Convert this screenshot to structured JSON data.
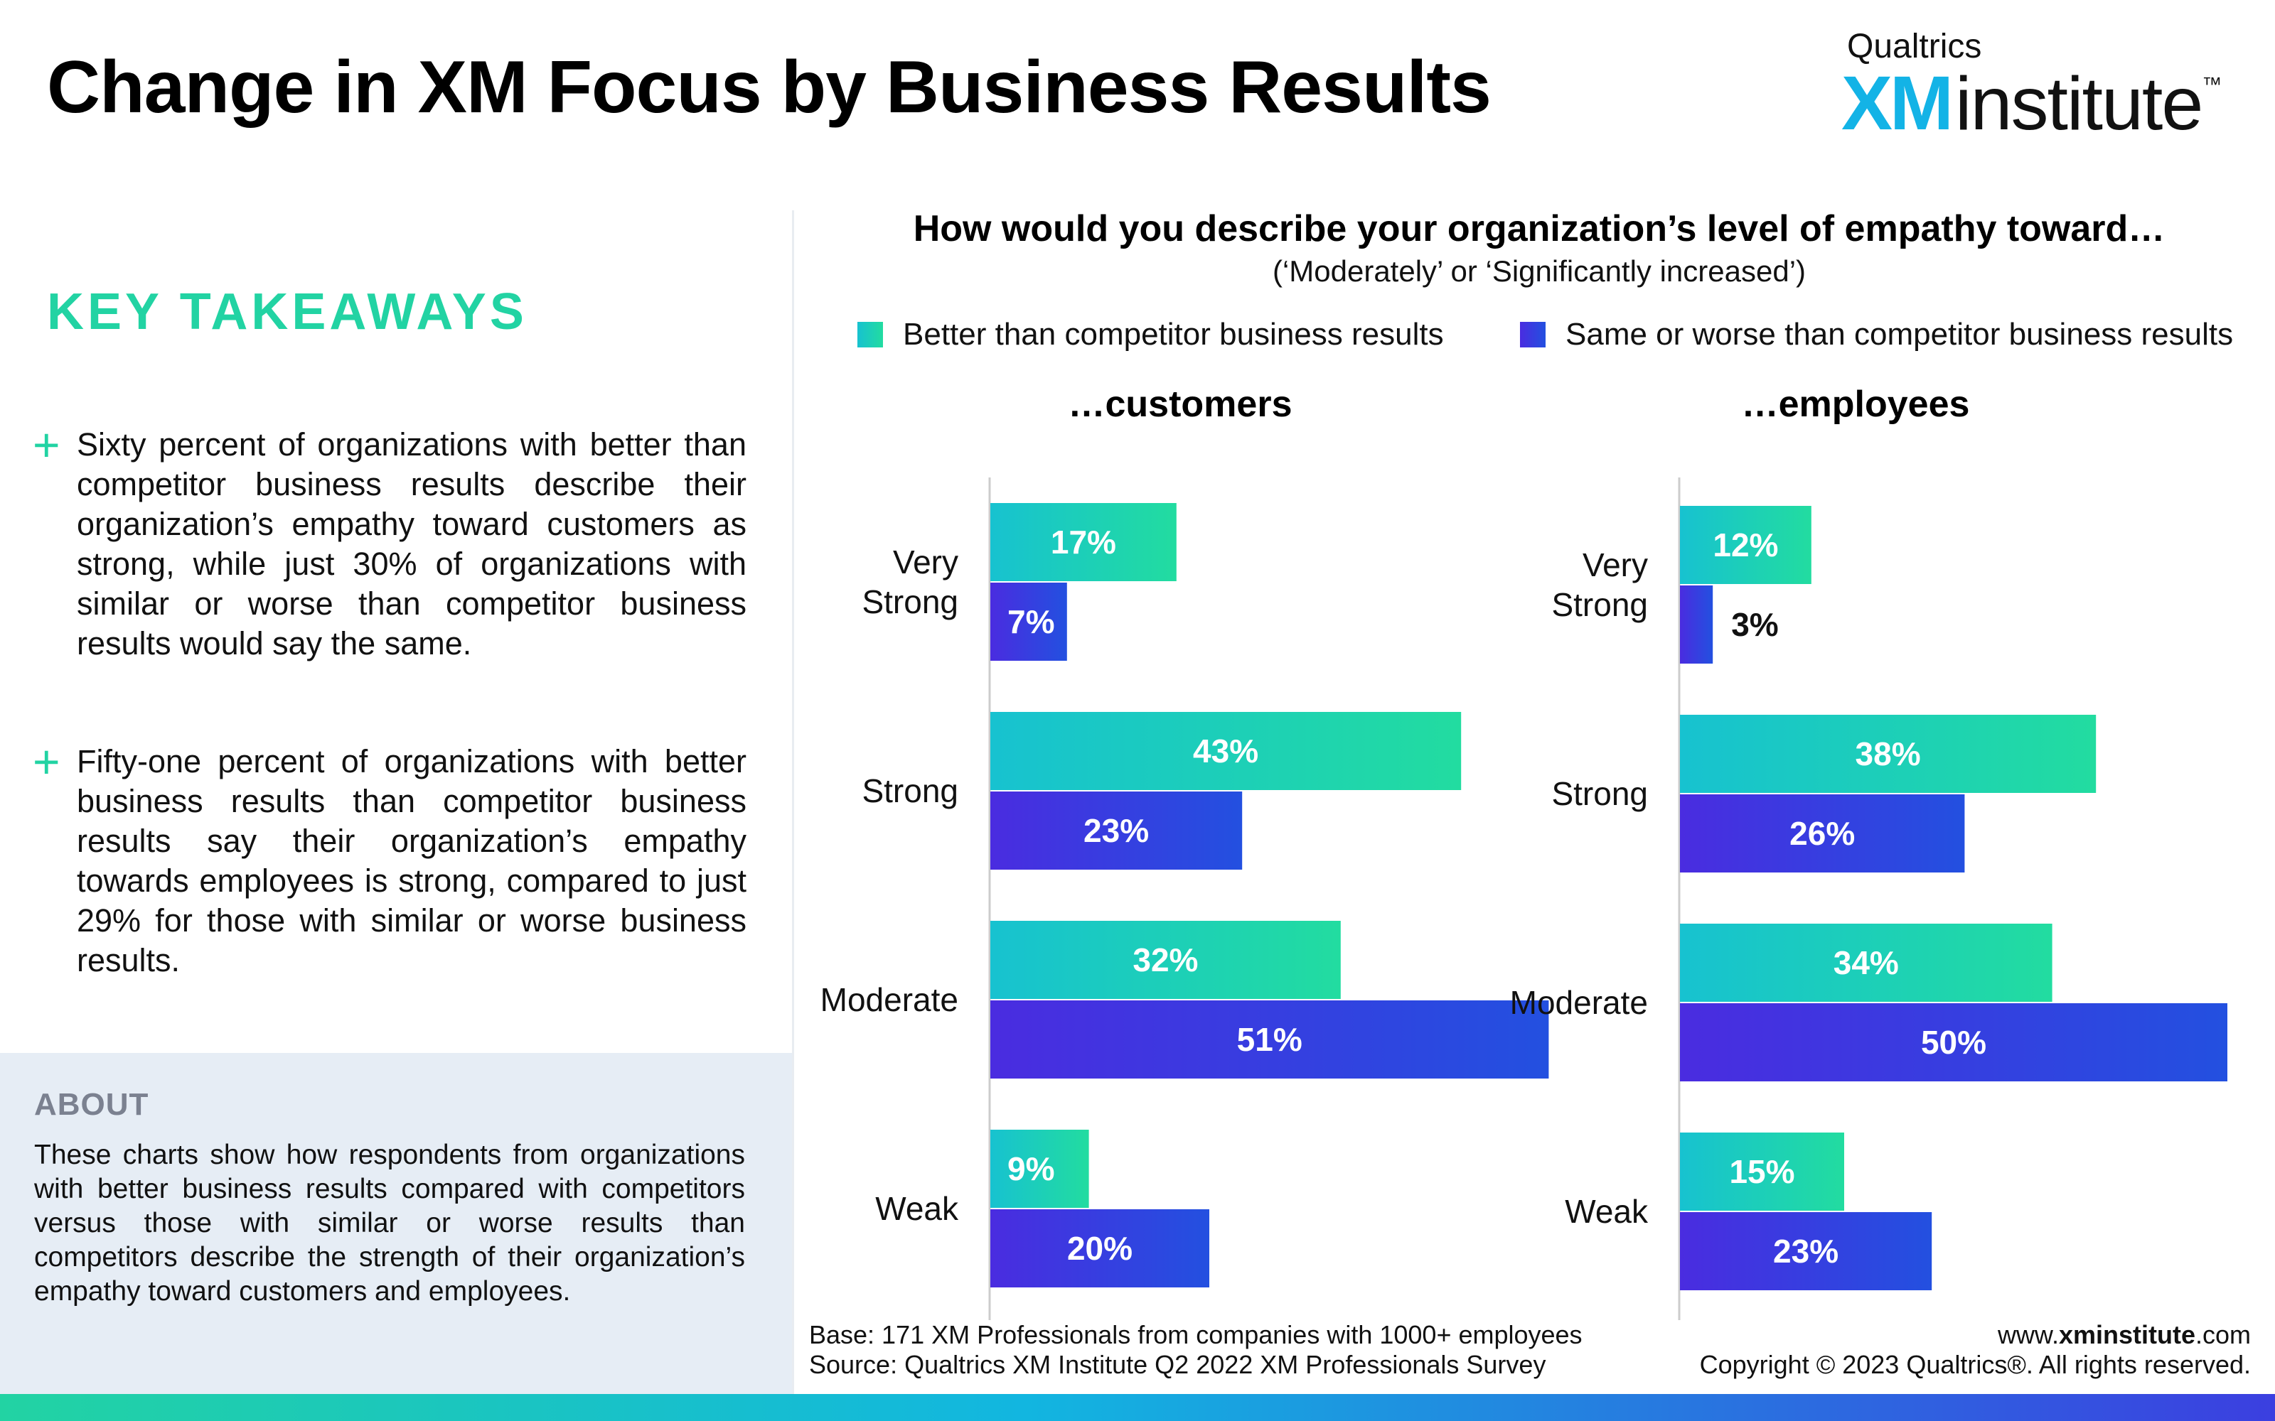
{
  "title": "Change in XM Focus by Business Results",
  "logo": {
    "top": "Qualtrics",
    "xm": "XM",
    "main": "institute",
    "tm": "™"
  },
  "takeaways": {
    "heading": "KEY TAKEAWAYS",
    "items": [
      "Sixty percent of organizations with better than competitor business results describe their organization’s empathy toward customers as strong, while just 30% of organizations with similar or worse than competitor business results would say the same.",
      "Fifty-one percent of organizations with better business results than competitor business results say their organization’s empathy towards employees is strong, compared to just 29% for those with similar or worse business results."
    ]
  },
  "about": {
    "heading": "ABOUT",
    "text": "These charts show how respondents from organizations with better business results compared with competitors versus those with similar or worse results than competitors describe the strength of their organization’s empathy toward customers and employees."
  },
  "question": "How would you describe your organization’s level of empathy toward…",
  "subquestion": "(‘Moderately’ or ‘Significantly increased’)",
  "colors": {
    "better_start": "#17c2d0",
    "better_end": "#22dca0",
    "worse_start": "#4a2ce0",
    "worse_end": "#2350e0"
  },
  "chart_data": [
    {
      "type": "bar",
      "orientation": "horizontal",
      "title": "…customers",
      "categories": [
        "Very Strong",
        "Strong",
        "Moderate",
        "Weak"
      ],
      "series": [
        {
          "name": "Better than competitor business results",
          "values": [
            17,
            43,
            32,
            9
          ]
        },
        {
          "name": "Same or worse than competitor business results",
          "values": [
            7,
            23,
            51,
            20
          ]
        }
      ],
      "unit": "%",
      "legend": "top"
    },
    {
      "type": "bar",
      "orientation": "horizontal",
      "title": "…employees",
      "categories": [
        "Very Strong",
        "Strong",
        "Moderate",
        "Weak"
      ],
      "series": [
        {
          "name": "Better than competitor business results",
          "values": [
            12,
            38,
            34,
            15
          ]
        },
        {
          "name": "Same or worse than competitor business results",
          "values": [
            3,
            26,
            50,
            23
          ]
        }
      ],
      "unit": "%",
      "legend": "top"
    }
  ],
  "footer": {
    "base": "Base: 171 XM Professionals from companies with 1000+ employees",
    "source": "Source: Qualtrics XM Institute Q2 2022 XM Professionals Survey",
    "site_prefix": "www.",
    "site_bold": "xminstitute",
    "site_suffix": ".com",
    "copyright": "Copyright © 2023 Qualtrics®. All rights reserved."
  }
}
